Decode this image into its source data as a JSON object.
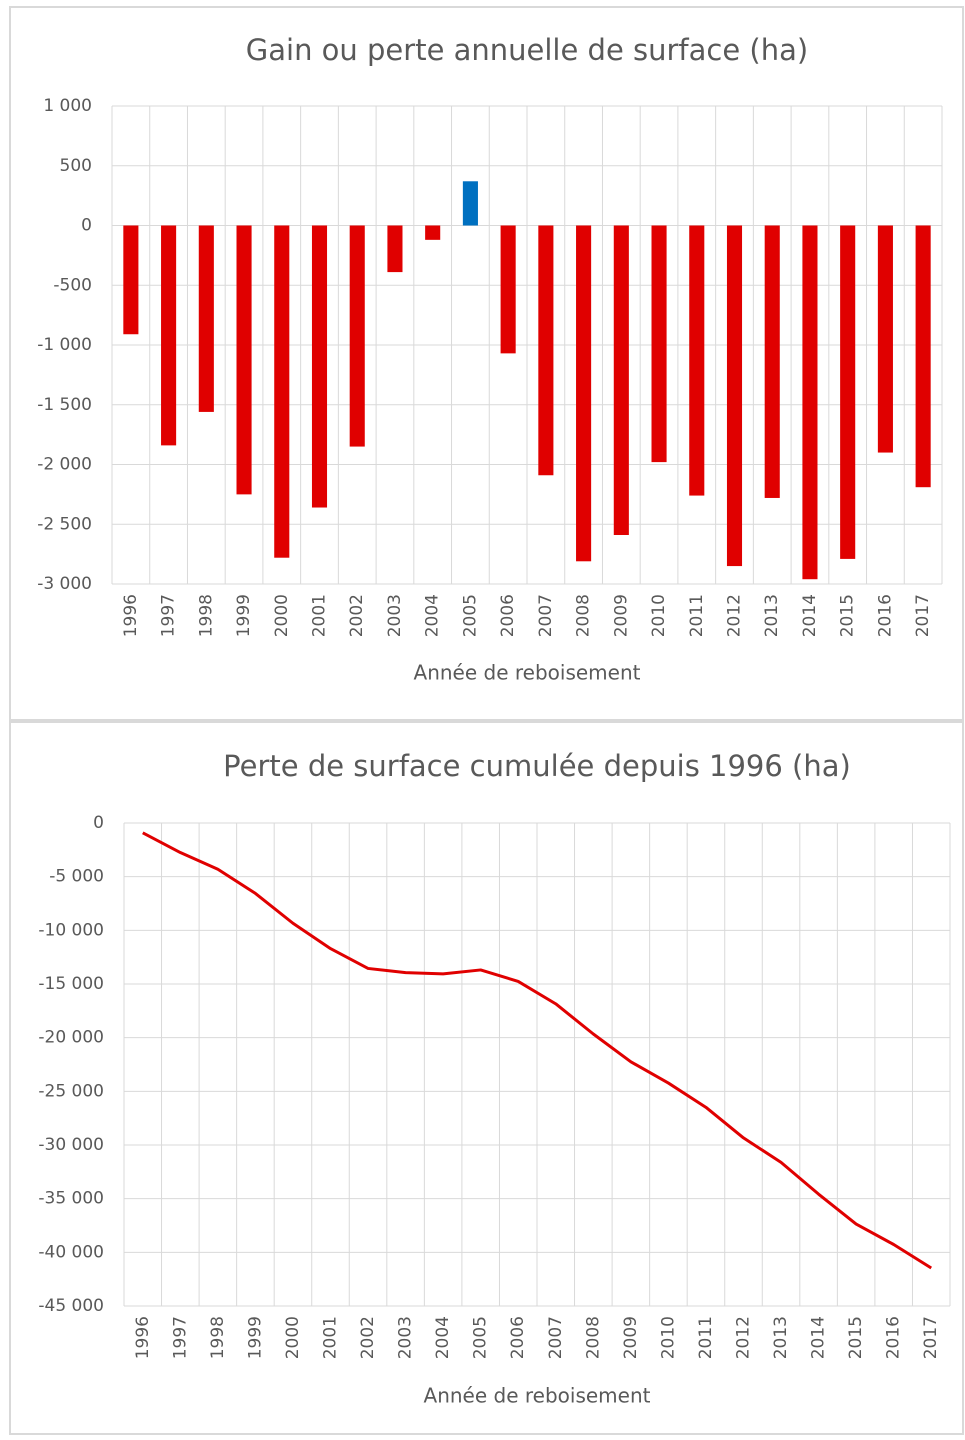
{
  "chart_data": [
    {
      "type": "bar",
      "title": "Gain ou perte annuelle de surface (ha)",
      "x_label": "Année de reboisement",
      "categories": [
        "1996",
        "1997",
        "1998",
        "1999",
        "2000",
        "2001",
        "2002",
        "2003",
        "2004",
        "2005",
        "2006",
        "2007",
        "2008",
        "2009",
        "2010",
        "2011",
        "2012",
        "2013",
        "2014",
        "2015",
        "2016",
        "2017"
      ],
      "values": [
        -910,
        -1840,
        -1560,
        -2250,
        -2780,
        -2360,
        -1850,
        -390,
        -120,
        370,
        -1070,
        -2090,
        -2810,
        -2590,
        -1980,
        -2260,
        -2850,
        -2280,
        -2960,
        -2790,
        -1900,
        -2190
      ],
      "colors": [
        "#e00000",
        "#e00000",
        "#e00000",
        "#e00000",
        "#e00000",
        "#e00000",
        "#e00000",
        "#e00000",
        "#e00000",
        "#0070c0",
        "#e00000",
        "#e00000",
        "#e00000",
        "#e00000",
        "#e00000",
        "#e00000",
        "#e00000",
        "#e00000",
        "#e00000",
        "#e00000",
        "#e00000",
        "#e00000"
      ],
      "ylim": [
        -3000,
        1000
      ],
      "yticks": [
        {
          "value": 1000,
          "label": "1 000"
        },
        500,
        0,
        -500,
        {
          "value": -1000,
          "label": "-1 000"
        },
        {
          "value": -1500,
          "label": "-1 500"
        },
        {
          "value": -2000,
          "label": "-2 000"
        },
        {
          "value": -2500,
          "label": "-2 500"
        },
        {
          "value": -3000,
          "label": "-3 000"
        }
      ],
      "grid": true
    },
    {
      "type": "line",
      "title": "Perte de surface cumulée depuis 1996 (ha)",
      "x_label": "Année de reboisement",
      "categories": [
        "1996",
        "1997",
        "1998",
        "1999",
        "2000",
        "2001",
        "2002",
        "2003",
        "2004",
        "2005",
        "2006",
        "2007",
        "2008",
        "2009",
        "2010",
        "2011",
        "2012",
        "2013",
        "2014",
        "2015",
        "2016",
        "2017"
      ],
      "values": [
        -910,
        -2750,
        -4310,
        -6560,
        -9340,
        -11700,
        -13550,
        -13940,
        -14060,
        -13690,
        -14760,
        -16850,
        -19660,
        -22250,
        -24230,
        -26490,
        -29340,
        -31620,
        -34580,
        -37370,
        -39270,
        -41460
      ],
      "color": "#e00000",
      "ylim": [
        -45000,
        0
      ],
      "yticks": [
        0,
        {
          "value": -5000,
          "label": "-5 000"
        },
        {
          "value": -10000,
          "label": "-10 000"
        },
        {
          "value": -15000,
          "label": "-15 000"
        },
        {
          "value": -20000,
          "label": "-20 000"
        },
        {
          "value": -25000,
          "label": "-25 000"
        },
        {
          "value": -30000,
          "label": "-30 000"
        },
        {
          "value": -35000,
          "label": "-35 000"
        },
        {
          "value": -40000,
          "label": "-40 000"
        },
        {
          "value": -45000,
          "label": "-45 000"
        }
      ],
      "grid": true
    }
  ]
}
